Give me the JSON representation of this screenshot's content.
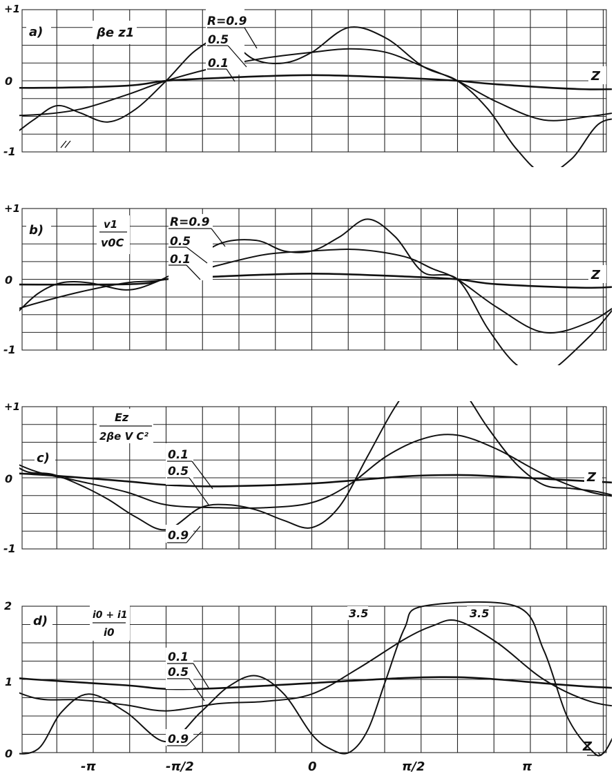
{
  "chart_data": [
    {
      "panel": "a)",
      "type": "line",
      "ylabel": "βe z1",
      "xlabel": "Z",
      "y_tick_labels": [
        "+1",
        "0",
        "-1"
      ],
      "ylim": [
        -1,
        1
      ],
      "xlim": [
        -3.98,
        4.03
      ],
      "grid": true,
      "series": [
        {
          "name": "R=0.9",
          "x": [
            -3.7,
            -3.3,
            -3.0,
            -2.75,
            -2.5,
            -2.2,
            -1.9,
            -1.57,
            -1.25,
            -0.95,
            -0.62,
            -0.3,
            0.0,
            0.4,
            0.8,
            1.2,
            1.57,
            1.9,
            2.2,
            2.5,
            2.8,
            3.1,
            3.4,
            3.7,
            4.0
          ],
          "y": [
            -1.0,
            -0.82,
            -0.55,
            -0.35,
            -0.45,
            -0.58,
            -0.4,
            0.0,
            0.43,
            0.6,
            0.3,
            0.25,
            0.4,
            0.75,
            0.6,
            0.2,
            0.0,
            -0.4,
            -0.95,
            -1.3,
            -1.1,
            -0.6,
            -0.55,
            -0.65,
            -0.55
          ]
        },
        {
          "name": "0.5",
          "x": [
            -3.98,
            -3.5,
            -3.0,
            -2.5,
            -2.0,
            -1.57,
            -1.0,
            -0.5,
            0.0,
            0.4,
            0.8,
            1.2,
            1.57,
            2.0,
            2.5,
            3.0,
            3.5,
            4.0
          ],
          "y": [
            -0.4,
            -0.48,
            -0.48,
            -0.4,
            -0.2,
            0.0,
            0.2,
            0.32,
            0.4,
            0.45,
            0.4,
            0.2,
            0.0,
            -0.3,
            -0.55,
            -0.5,
            -0.4,
            -0.3
          ]
        },
        {
          "name": "0.1",
          "x": [
            -3.98,
            -3.0,
            -2.0,
            -1.57,
            -1.0,
            0.0,
            1.0,
            1.57,
            2.0,
            3.0,
            4.0
          ],
          "y": [
            -0.08,
            -0.1,
            -0.07,
            0.0,
            0.04,
            0.08,
            0.04,
            0.0,
            -0.05,
            -0.12,
            -0.08
          ]
        }
      ]
    },
    {
      "panel": "b)",
      "type": "line",
      "ylabel": "v1 / v0C",
      "xlabel": "Z",
      "y_tick_labels": [
        "+1",
        "0",
        "-1"
      ],
      "ylim": [
        -1,
        1
      ],
      "xlim": [
        -3.98,
        4.03
      ],
      "grid": true,
      "series": [
        {
          "name": "R=0.9",
          "x": [
            -3.6,
            -3.2,
            -2.95,
            -2.7,
            -2.4,
            -2.0,
            -1.7,
            -1.4,
            -1.0,
            -0.6,
            -0.3,
            0.0,
            0.3,
            0.6,
            0.9,
            1.2,
            1.57,
            1.9,
            2.2,
            2.5,
            3.0,
            3.5,
            4.0
          ],
          "y": [
            -1.0,
            -0.5,
            -0.2,
            -0.05,
            -0.05,
            -0.15,
            -0.05,
            0.15,
            0.5,
            0.55,
            0.4,
            0.4,
            0.6,
            0.85,
            0.6,
            0.1,
            0.0,
            -0.7,
            -1.2,
            -1.35,
            -0.8,
            -0.1,
            -0.05
          ]
        },
        {
          "name": "0.5",
          "x": [
            -3.98,
            -3.5,
            -3.0,
            -2.5,
            -2.0,
            -1.57,
            -1.0,
            -0.5,
            0.0,
            0.5,
            1.0,
            1.3,
            1.57,
            2.0,
            2.5,
            3.0,
            3.5,
            4.0
          ],
          "y": [
            -0.72,
            -0.55,
            -0.35,
            -0.18,
            -0.05,
            0.0,
            0.2,
            0.35,
            0.4,
            0.42,
            0.32,
            0.15,
            0.0,
            -0.4,
            -0.75,
            -0.6,
            -0.2,
            -0.05
          ]
        },
        {
          "name": "0.1",
          "x": [
            -3.98,
            -2.0,
            -1.57,
            -1.0,
            0.0,
            1.0,
            1.57,
            2.0,
            3.0,
            3.5,
            4.0
          ],
          "y": [
            -0.07,
            -0.07,
            0.0,
            0.04,
            0.08,
            0.04,
            0.0,
            -0.07,
            -0.12,
            -0.08,
            -0.05
          ]
        }
      ]
    },
    {
      "panel": "c)",
      "type": "line",
      "ylabel": "Ez / 2βe V C²",
      "xlabel": "Z",
      "y_tick_labels": [
        "+1",
        "0",
        "-1"
      ],
      "ylim": [
        -1,
        1
      ],
      "xlim": [
        -3.98,
        4.03
      ],
      "grid": true,
      "series": [
        {
          "name": "0.9",
          "x": [
            -3.8,
            -3.4,
            -3.1,
            -2.8,
            -2.5,
            -2.2,
            -1.9,
            -1.57,
            -1.2,
            -0.9,
            -0.6,
            -0.3,
            0.0,
            0.3,
            0.6,
            0.9,
            1.2,
            1.5,
            1.7,
            1.9,
            2.2,
            2.5,
            2.8,
            3.1,
            3.4,
            3.7,
            4.0
          ],
          "y": [
            1.0,
            0.4,
            0.1,
            0.05,
            -0.1,
            -0.3,
            -0.55,
            -0.73,
            -0.42,
            -0.38,
            -0.45,
            -0.6,
            -0.7,
            -0.4,
            0.3,
            1.0,
            1.5,
            1.45,
            1.1,
            0.7,
            0.2,
            -0.1,
            -0.15,
            -0.2,
            -0.3,
            -0.4,
            -0.5
          ]
        },
        {
          "name": "0.5",
          "x": [
            -3.98,
            -3.5,
            -3.0,
            -2.5,
            -2.0,
            -1.57,
            -1.0,
            -0.5,
            0.0,
            0.4,
            0.8,
            1.2,
            1.57,
            2.0,
            2.5,
            3.0,
            3.5,
            4.0
          ],
          "y": [
            0.7,
            0.4,
            0.1,
            -0.05,
            -0.2,
            -0.38,
            -0.42,
            -0.42,
            -0.35,
            -0.1,
            0.3,
            0.55,
            0.6,
            0.4,
            0.05,
            -0.2,
            -0.3,
            -0.4
          ]
        },
        {
          "name": "0.1",
          "x": [
            -3.98,
            -3.0,
            -2.0,
            -1.57,
            -1.0,
            0.0,
            1.0,
            1.57,
            2.0,
            3.0,
            4.0
          ],
          "y": [
            0.1,
            0.05,
            -0.05,
            -0.1,
            -0.12,
            -0.08,
            0.02,
            0.04,
            0.02,
            -0.05,
            -0.12
          ]
        }
      ]
    },
    {
      "panel": "d)",
      "type": "line",
      "ylabel": "(i0 + i1) / i0",
      "xlabel": "Z",
      "y_tick_labels": [
        "2",
        "1",
        "0"
      ],
      "x_tick_labels": [
        "-π",
        "-π/2",
        "0",
        "π/2",
        "π"
      ],
      "ylim": [
        0,
        2
      ],
      "xlim": [
        -3.98,
        4.03
      ],
      "grid": true,
      "annotations": [
        "3.5",
        "3.5"
      ],
      "series": [
        {
          "name": "0.9",
          "x": [
            -4.0,
            -3.75,
            -3.5,
            -3.25,
            -2.95,
            -2.7,
            -2.4,
            -2.0,
            -1.57,
            -1.2,
            -0.9,
            -0.6,
            -0.3,
            0.0,
            0.2,
            0.4,
            0.6,
            0.8,
            1.0,
            1.2,
            2.2,
            2.5,
            2.75,
            3.0,
            3.15,
            3.4,
            3.7,
            4.0
          ],
          "y": [
            2.0,
            0.8,
            0.15,
            0.0,
            0.05,
            0.55,
            0.8,
            0.55,
            0.15,
            0.55,
            0.9,
            1.05,
            0.8,
            0.25,
            0.05,
            0.0,
            0.3,
            1.0,
            1.7,
            2.0,
            2.0,
            1.4,
            0.5,
            0.05,
            0.0,
            0.55,
            0.7,
            0.6
          ]
        },
        {
          "name": "0.5",
          "x": [
            -3.98,
            -3.5,
            -3.0,
            -2.5,
            -2.0,
            -1.57,
            -1.0,
            -0.5,
            0.0,
            0.5,
            1.0,
            1.3,
            1.57,
            2.0,
            2.5,
            3.0,
            3.5,
            4.0
          ],
          "y": [
            1.55,
            1.05,
            0.75,
            0.72,
            0.65,
            0.57,
            0.67,
            0.7,
            0.8,
            1.15,
            1.55,
            1.73,
            1.8,
            1.5,
            1.0,
            0.7,
            0.6,
            0.5
          ]
        },
        {
          "name": "0.1",
          "x": [
            -3.98,
            -3.0,
            -2.0,
            -1.57,
            -1.0,
            0.0,
            1.0,
            1.57,
            2.0,
            3.0,
            4.0
          ],
          "y": [
            1.1,
            1.0,
            0.92,
            0.87,
            0.88,
            0.95,
            1.02,
            1.03,
            1.0,
            0.9,
            0.85
          ]
        }
      ]
    }
  ],
  "labels": {
    "a": {
      "panel": "a)",
      "ylabel": "βe z1",
      "r09": "R=0.9",
      "r05": "0.5",
      "r01": "0.1",
      "z": "Z"
    },
    "b": {
      "panel": "b)",
      "ylabel_num": "v1",
      "ylabel_den": "v0C",
      "r09": "R=0.9",
      "r05": "0.5",
      "r01": "0.1",
      "z": "Z"
    },
    "c": {
      "panel": "c)",
      "ylabel_num": "Ez",
      "ylabel_den": "2βe V C²",
      "r01": "0.1",
      "r05": "0.5",
      "r09": "0.9",
      "z": "Z"
    },
    "d": {
      "panel": "d)",
      "ylabel_num": "i0 + i1",
      "ylabel_den": "i0",
      "r01": "0.1",
      "r05": "0.5",
      "r09": "0.9",
      "z": "Z",
      "ann_left": "3.5",
      "ann_right": "3.5"
    }
  }
}
